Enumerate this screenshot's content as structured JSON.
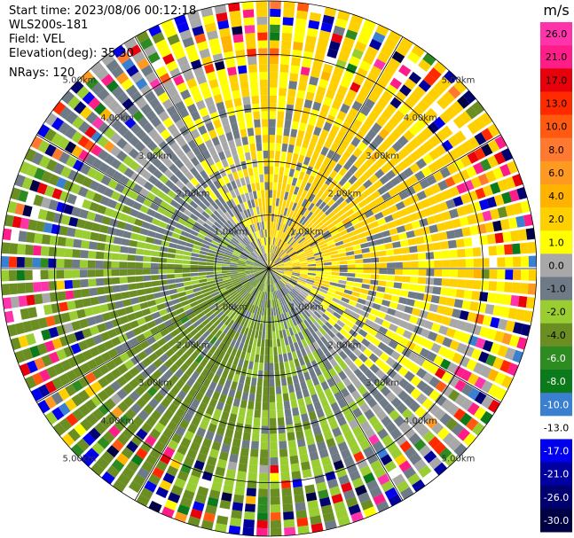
{
  "header": {
    "start_time": "Start time: 2023/08/06 00:12:18",
    "instrument": "WLS200s-181",
    "field": "Field: VEL",
    "elevation": "Elevation(deg): 35.30",
    "nrays": "NRays: 120"
  },
  "chart_data": {
    "type": "polar-ppi",
    "field": "VEL",
    "nrays": 120,
    "rings": [
      1,
      2,
      3,
      4,
      5
    ],
    "range_labels": [
      "1.00km",
      "2.00km",
      "3.00km",
      "4.00km",
      "5.00km"
    ],
    "max_range_km": 5.0,
    "colorbar": {
      "unit": "m/s",
      "ticks": [
        "26.0",
        "21.0",
        "17.0",
        "13.0",
        "10.0",
        "8.0",
        "6.0",
        "4.0",
        "2.0",
        "1.0",
        "0.0",
        "-1.0",
        "-2.0",
        "-4.0",
        "-6.0",
        "-8.0",
        "-10.0",
        "-13.0",
        "-17.0",
        "-21.0",
        "-26.0",
        "-30.0"
      ],
      "levels": [
        {
          "min": 26,
          "max": 30,
          "color": "#ff33aa"
        },
        {
          "min": 21,
          "max": 26,
          "color": "#ff1d8a"
        },
        {
          "min": 17,
          "max": 21,
          "color": "#e8000b"
        },
        {
          "min": 13,
          "max": 17,
          "color": "#ff2a00"
        },
        {
          "min": 10,
          "max": 13,
          "color": "#ff5a10"
        },
        {
          "min": 8,
          "max": 10,
          "color": "#ff7a30"
        },
        {
          "min": 6,
          "max": 8,
          "color": "#ff9a20"
        },
        {
          "min": 4,
          "max": 6,
          "color": "#ffb300"
        },
        {
          "min": 2,
          "max": 4,
          "color": "#ffd000"
        },
        {
          "min": 1,
          "max": 2,
          "color": "#ffff00"
        },
        {
          "min": 0,
          "max": 1,
          "color": "#a8a8a8"
        },
        {
          "min": -1,
          "max": 0,
          "color": "#6e7a86"
        },
        {
          "min": -2,
          "max": -1,
          "color": "#9acd32"
        },
        {
          "min": -4,
          "max": -2,
          "color": "#6b8e23"
        },
        {
          "min": -6,
          "max": -4,
          "color": "#2e8b22"
        },
        {
          "min": -8,
          "max": -6,
          "color": "#0a7a1a"
        },
        {
          "min": -10,
          "max": -8,
          "color": "#3a7fd0"
        },
        {
          "min": -13,
          "max": -10,
          "color": "#ffffff"
        },
        {
          "min": -17,
          "max": -13,
          "color": "#0000ee"
        },
        {
          "min": -21,
          "max": -17,
          "color": "#0000a0"
        },
        {
          "min": -26,
          "max": -21,
          "color": "#000070"
        },
        {
          "min": -30,
          "max": -26,
          "color": "#000045"
        }
      ]
    }
  }
}
